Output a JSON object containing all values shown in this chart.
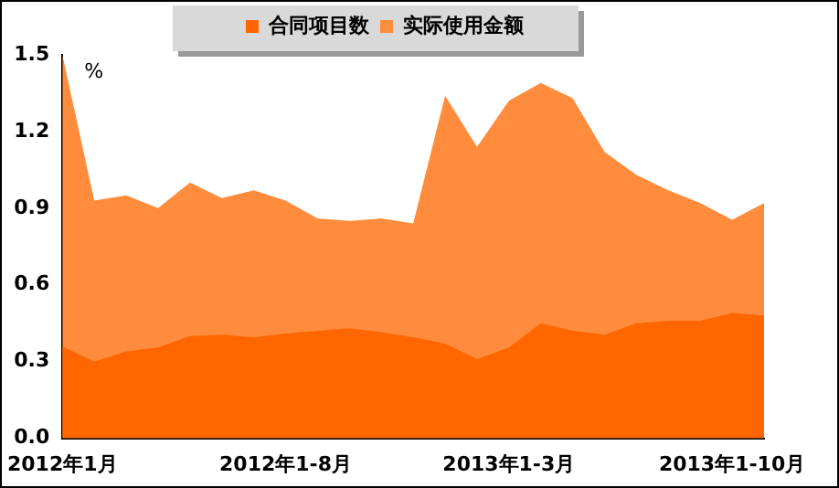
{
  "chart_data": {
    "type": "area",
    "ylabel": "%",
    "categories": [
      "2012年1月",
      null,
      null,
      null,
      null,
      null,
      null,
      "2012年1-8月",
      null,
      null,
      null,
      null,
      null,
      null,
      "2013年1-3月",
      null,
      null,
      null,
      null,
      null,
      null,
      "2013年1-10月",
      null
    ],
    "series": [
      {
        "name": "合同项目数",
        "color": "#ff6600",
        "values": [
          0.36,
          0.3,
          0.34,
          0.355,
          0.4,
          0.405,
          0.395,
          0.41,
          0.42,
          0.43,
          0.415,
          0.395,
          0.37,
          0.31,
          0.355,
          0.45,
          0.42,
          0.405,
          0.45,
          0.46,
          0.46,
          0.49,
          0.48
        ]
      },
      {
        "name": "实际使用金额",
        "color": "#ff8c3c",
        "values": [
          1.5,
          0.93,
          0.95,
          0.9,
          1.0,
          0.94,
          0.97,
          0.93,
          0.86,
          0.85,
          0.86,
          0.84,
          1.34,
          1.14,
          1.32,
          1.39,
          1.33,
          1.12,
          1.03,
          0.97,
          0.92,
          0.855,
          0.92
        ]
      }
    ],
    "ylim": [
      0,
      1.5
    ],
    "yticks": [
      {
        "value": 0,
        "label": "0.0"
      },
      0.3,
      0.6,
      0.9,
      1.2,
      1.5
    ],
    "grid": false,
    "legend": "top"
  }
}
